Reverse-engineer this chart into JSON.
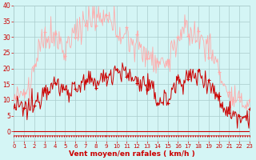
{
  "xlabel": "Vent moyen/en rafales ( km/h )",
  "xlabel_color": "#cc0000",
  "background_color": "#d4f5f5",
  "grid_color": "#aacccc",
  "ylim": [
    -3,
    40
  ],
  "xlim": [
    0,
    23
  ],
  "yticks": [
    0,
    5,
    10,
    15,
    20,
    25,
    30,
    35,
    40
  ],
  "xticks": [
    0,
    1,
    2,
    3,
    4,
    5,
    6,
    7,
    8,
    9,
    10,
    11,
    12,
    13,
    14,
    15,
    16,
    17,
    18,
    19,
    20,
    21,
    22,
    23
  ],
  "tick_color": "#cc0000",
  "line_color_mean": "#cc0000",
  "line_color_gust": "#ffaaaa",
  "arrow_color": "#cc0000"
}
